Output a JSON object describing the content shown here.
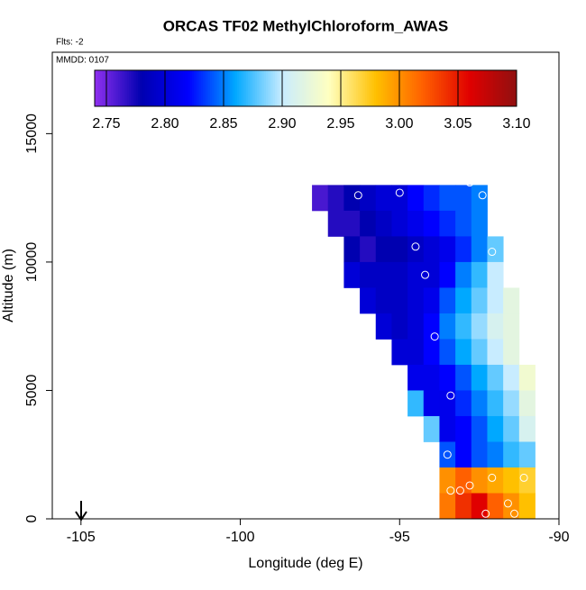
{
  "chart_data": {
    "type": "heatmap",
    "title": "ORCAS TF02 MethylChloroform_AWAS",
    "annotations": [
      "Flts: -2",
      "MMDD: 0107"
    ],
    "x_label": "Longitude (deg E)",
    "y_label": "Altitude (m)",
    "xlim": [
      -105.9,
      -90
    ],
    "xticks": [
      -105,
      -100,
      -95,
      -90
    ],
    "ylim": [
      0,
      18170
    ],
    "yticks": [
      0,
      5000,
      10000,
      15000
    ],
    "x": [
      -97.5,
      -97,
      -96.5,
      -96,
      -95.5,
      -95,
      -94.5,
      -94,
      -93.5,
      -93,
      -92.5,
      -92,
      -91.5,
      -91,
      -90.5
    ],
    "y": [
      12500,
      11500,
      10500,
      9500,
      8500,
      7500,
      6500,
      5500,
      4500,
      3500,
      2500,
      1500,
      500
    ],
    "z": [
      [
        2.76,
        2.77,
        2.78,
        2.79,
        2.8,
        2.8,
        2.82,
        2.83,
        2.84,
        2.84,
        2.85,
        null,
        null,
        null,
        null
      ],
      [
        null,
        2.77,
        2.77,
        2.78,
        2.79,
        2.8,
        2.81,
        2.82,
        2.83,
        2.84,
        2.85,
        null,
        null,
        null,
        null
      ],
      [
        null,
        null,
        2.78,
        2.77,
        2.78,
        2.78,
        2.79,
        2.8,
        2.81,
        2.83,
        2.85,
        2.88,
        null,
        null,
        null
      ],
      [
        null,
        null,
        2.8,
        2.79,
        2.79,
        2.79,
        2.8,
        2.8,
        2.82,
        2.85,
        2.87,
        2.9,
        null,
        null,
        null
      ],
      [
        null,
        null,
        null,
        2.8,
        2.79,
        2.79,
        2.8,
        2.81,
        2.84,
        2.86,
        2.88,
        2.9,
        2.92,
        null,
        null
      ],
      [
        null,
        null,
        null,
        null,
        2.8,
        2.79,
        2.8,
        2.82,
        2.85,
        2.87,
        2.89,
        2.91,
        2.92,
        null,
        null
      ],
      [
        null,
        null,
        null,
        null,
        null,
        2.8,
        2.8,
        2.82,
        2.84,
        2.86,
        2.88,
        2.9,
        2.92,
        null,
        null
      ],
      [
        null,
        null,
        null,
        null,
        null,
        null,
        2.81,
        2.81,
        2.82,
        2.84,
        2.86,
        2.88,
        2.9,
        2.93,
        null
      ],
      [
        null,
        null,
        null,
        null,
        null,
        null,
        2.87,
        2.81,
        2.81,
        2.83,
        2.85,
        2.87,
        2.89,
        2.92,
        null
      ],
      [
        null,
        null,
        null,
        null,
        null,
        null,
        null,
        2.88,
        2.81,
        2.82,
        2.84,
        2.86,
        2.88,
        2.91,
        null
      ],
      [
        null,
        null,
        null,
        null,
        null,
        null,
        null,
        null,
        2.84,
        2.82,
        2.84,
        2.85,
        2.87,
        2.88,
        null
      ],
      [
        null,
        null,
        null,
        null,
        null,
        null,
        null,
        null,
        3.0,
        3.02,
        3.0,
        2.99,
        2.98,
        2.97,
        null
      ],
      [
        null,
        null,
        null,
        null,
        null,
        null,
        null,
        null,
        3.01,
        3.04,
        3.06,
        3.02,
        3.0,
        2.98,
        null
      ]
    ],
    "points": {
      "x": [
        -96.3,
        -95,
        -92.8,
        -92.4,
        -94.5,
        -94.2,
        -93.9,
        -93.4,
        -93.5,
        -92.1,
        -93.4,
        -93.1,
        -92.8,
        -92.1,
        -91.1,
        -91.6,
        -92.3,
        -91.4
      ],
      "y": [
        12600,
        12700,
        13100,
        12600,
        10600,
        9500,
        7100,
        4800,
        2500,
        10400,
        1100,
        1100,
        1300,
        1600,
        1600,
        600,
        200,
        200
      ]
    },
    "colorbar": {
      "lim": [
        2.74,
        3.1
      ],
      "ticks": [
        2.75,
        {
          "value": 2.8,
          "label": "2.80"
        },
        2.85,
        {
          "value": 2.9,
          "label": "2.90"
        },
        2.95,
        {
          "value": 3.0,
          "label": "3.00"
        },
        3.05,
        {
          "value": 3.1,
          "label": "3.10"
        }
      ],
      "colors": [
        "#9030f0",
        "#0000b0",
        "#0000ff",
        "#00a8ff",
        "#c8ecff",
        "#ffffc0",
        "#ffc000",
        "#ff6000",
        "#e00000",
        "#901010"
      ]
    }
  }
}
